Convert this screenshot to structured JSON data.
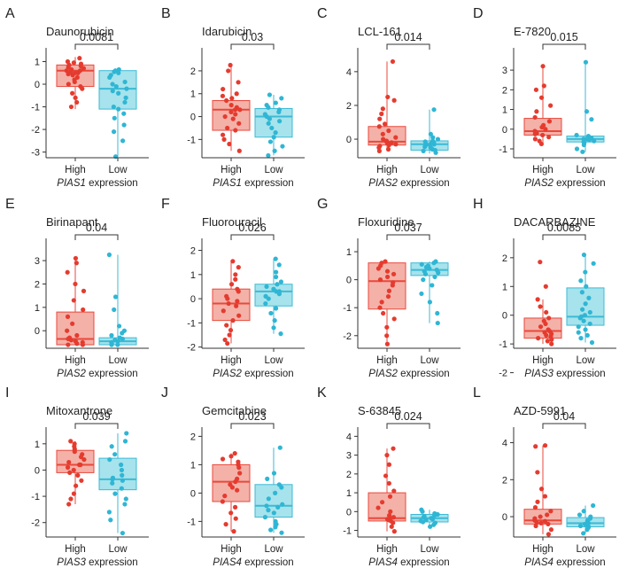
{
  "figure": {
    "colors": {
      "high_fill": "#F4B1A8",
      "high_line": "#E8493C",
      "high_point": "#E53B2F",
      "low_fill": "#A6E3EC",
      "low_line": "#3DBAD5",
      "low_point": "#2FB6D4",
      "axis": "#333333"
    }
  },
  "chart_data": [
    {
      "type": "box",
      "letter": "A",
      "title": "Daunorubicin",
      "p_value": "0.0081",
      "gene": "PIAS1",
      "xlabel_suffix": " expression",
      "categories": [
        "High",
        "Low"
      ],
      "yticks": [
        -3,
        -2,
        -1,
        0,
        1
      ],
      "ylim": [
        -3.25,
        1.45
      ],
      "boxes": [
        {
          "name": "High",
          "q1": -0.1,
          "median": 0.6,
          "q3": 0.85,
          "whisker_low": -1.1,
          "whisker_high": 1.2,
          "points": [
            1.15,
            1.0,
            0.95,
            0.9,
            0.85,
            0.8,
            0.75,
            0.7,
            0.65,
            0.6,
            0.6,
            0.55,
            0.5,
            0.5,
            0.45,
            0.4,
            0.3,
            0.2,
            0.1,
            0.0,
            -0.1,
            -0.2,
            -0.4,
            -0.6,
            -0.8,
            -1.0
          ]
        },
        {
          "name": "Low",
          "q1": -1.1,
          "median": -0.2,
          "q3": 0.6,
          "whisker_low": -3.2,
          "whisker_high": 0.65,
          "points": [
            0.65,
            0.6,
            0.55,
            0.5,
            0.4,
            0.3,
            0.1,
            0.0,
            -0.1,
            -0.2,
            -0.3,
            -0.4,
            -0.6,
            -0.8,
            -1.0,
            -1.1,
            -1.3,
            -1.5,
            -1.8,
            -2.1,
            -2.5,
            -3.2
          ]
        }
      ]
    },
    {
      "type": "box",
      "letter": "B",
      "title": "Idarubicin",
      "p_value": "0.03",
      "gene": "PIAS1",
      "xlabel_suffix": " expression",
      "categories": [
        "High",
        "Low"
      ],
      "yticks": [
        -1,
        0,
        1,
        2
      ],
      "ylim": [
        -1.8,
        2.85
      ],
      "boxes": [
        {
          "name": "High",
          "q1": -0.6,
          "median": 0.3,
          "q3": 0.7,
          "whisker_low": -1.5,
          "whisker_high": 2.25,
          "points": [
            2.25,
            2.0,
            1.5,
            1.2,
            1.0,
            0.9,
            0.8,
            0.7,
            0.5,
            0.4,
            0.3,
            0.3,
            0.2,
            0.1,
            0.0,
            -0.1,
            -0.3,
            -0.5,
            -0.6,
            -0.8,
            -1.0,
            -1.2,
            -1.5
          ]
        },
        {
          "name": "Low",
          "q1": -0.9,
          "median": 0.0,
          "q3": 0.35,
          "whisker_low": -1.7,
          "whisker_high": 0.95,
          "points": [
            0.95,
            0.8,
            0.6,
            0.5,
            0.4,
            0.3,
            0.2,
            0.1,
            0.0,
            -0.1,
            -0.2,
            -0.3,
            -0.5,
            -0.7,
            -0.9,
            -1.1,
            -1.3,
            -1.5,
            -1.7
          ]
        }
      ]
    },
    {
      "type": "box",
      "letter": "C",
      "title": "LCL-161",
      "p_value": "0.014",
      "gene": "PIAS2",
      "xlabel_suffix": " expression",
      "categories": [
        "High",
        "Low"
      ],
      "yticks": [
        0,
        2,
        4
      ],
      "ylim": [
        -1.1,
        5.2
      ],
      "boxes": [
        {
          "name": "High",
          "q1": -0.35,
          "median": -0.15,
          "q3": 0.75,
          "whisker_low": -0.7,
          "whisker_high": 4.6,
          "points": [
            4.6,
            2.5,
            2.3,
            1.8,
            1.5,
            1.2,
            0.9,
            0.75,
            0.5,
            0.3,
            0.1,
            0.0,
            -0.1,
            -0.15,
            -0.2,
            -0.25,
            -0.3,
            -0.35,
            -0.4,
            -0.5,
            -0.6,
            -0.7
          ]
        },
        {
          "name": "Low",
          "q1": -0.65,
          "median": -0.3,
          "q3": -0.1,
          "whisker_low": -0.85,
          "whisker_high": 1.75,
          "points": [
            1.75,
            0.3,
            0.1,
            0.0,
            -0.1,
            -0.15,
            -0.2,
            -0.25,
            -0.3,
            -0.3,
            -0.35,
            -0.4,
            -0.45,
            -0.5,
            -0.55,
            -0.6,
            -0.65,
            -0.7,
            -0.8
          ]
        }
      ]
    },
    {
      "type": "box",
      "letter": "D",
      "title": "E-7820",
      "p_value": "0.015",
      "gene": "PIAS2",
      "xlabel_suffix": " expression",
      "categories": [
        "High",
        "Low"
      ],
      "yticks": [
        -1,
        0,
        1,
        2,
        3
      ],
      "ylim": [
        -1.45,
        3.95
      ],
      "boxes": [
        {
          "name": "High",
          "q1": -0.3,
          "median": -0.1,
          "q3": 0.55,
          "whisker_low": -0.75,
          "whisker_high": 3.2,
          "points": [
            3.2,
            2.2,
            2.0,
            1.6,
            1.2,
            0.9,
            0.6,
            0.4,
            0.2,
            0.1,
            0.0,
            -0.1,
            -0.15,
            -0.2,
            -0.25,
            -0.3,
            -0.4,
            -0.5,
            -0.6,
            -0.75
          ]
        },
        {
          "name": "Low",
          "q1": -0.65,
          "median": -0.5,
          "q3": -0.35,
          "whisker_low": -1.15,
          "whisker_high": 3.4,
          "points": [
            3.4,
            0.9,
            0.5,
            -0.3,
            -0.35,
            -0.4,
            -0.45,
            -0.5,
            -0.5,
            -0.55,
            -0.6,
            -0.65,
            -0.7,
            -0.8,
            -1.0,
            -1.15
          ]
        }
      ]
    },
    {
      "type": "box",
      "letter": "E",
      "title": "Birinapant",
      "p_value": "0.04",
      "gene": "PIAS2",
      "xlabel_suffix": " expression",
      "categories": [
        "High",
        "Low"
      ],
      "yticks": [
        0,
        1,
        2,
        3
      ],
      "ylim": [
        -0.75,
        3.8
      ],
      "boxes": [
        {
          "name": "High",
          "q1": -0.6,
          "median": -0.35,
          "q3": 0.8,
          "whisker_low": -0.6,
          "whisker_high": 3.1,
          "points": [
            3.1,
            2.9,
            2.5,
            2.0,
            1.7,
            1.3,
            0.9,
            0.6,
            0.3,
            0.0,
            -0.2,
            -0.3,
            -0.35,
            -0.4,
            -0.45,
            -0.5,
            -0.55,
            -0.6,
            -0.6
          ]
        },
        {
          "name": "Low",
          "q1": -0.6,
          "median": -0.45,
          "q3": -0.3,
          "whisker_low": -0.6,
          "whisker_high": 3.25,
          "points": [
            3.25,
            1.45,
            0.9,
            0.2,
            0.0,
            -0.1,
            -0.2,
            -0.3,
            -0.35,
            -0.4,
            -0.45,
            -0.5,
            -0.55,
            -0.6,
            -0.6
          ]
        }
      ]
    },
    {
      "type": "box",
      "letter": "F",
      "title": "Fluorouracil",
      "p_value": "0.026",
      "gene": "PIAS2",
      "xlabel_suffix": " expression",
      "categories": [
        "High",
        "Low"
      ],
      "yticks": [
        -2,
        -1,
        0,
        1,
        2
      ],
      "ylim": [
        -2.05,
        2.35
      ],
      "boxes": [
        {
          "name": "High",
          "q1": -0.9,
          "median": -0.2,
          "q3": 0.4,
          "whisker_low": -1.85,
          "whisker_high": 1.55,
          "points": [
            1.55,
            1.3,
            1.0,
            0.8,
            0.6,
            0.4,
            0.3,
            0.1,
            0.0,
            -0.1,
            -0.2,
            -0.3,
            -0.5,
            -0.7,
            -0.9,
            -1.1,
            -1.3,
            -1.5,
            -1.7,
            -1.85
          ]
        },
        {
          "name": "Low",
          "q1": -0.3,
          "median": 0.3,
          "q3": 0.6,
          "whisker_low": -1.45,
          "whisker_high": 1.65,
          "points": [
            1.65,
            1.4,
            1.1,
            0.9,
            0.7,
            0.6,
            0.5,
            0.4,
            0.3,
            0.3,
            0.2,
            0.1,
            0.0,
            -0.2,
            -0.4,
            -0.6,
            -0.9,
            -1.2,
            -1.45
          ]
        }
      ]
    },
    {
      "type": "box",
      "letter": "G",
      "title": "Floxuridine",
      "p_value": "0.037",
      "gene": "PIAS2",
      "xlabel_suffix": " expression",
      "categories": [
        "High",
        "Low"
      ],
      "yticks": [
        -2,
        -1,
        0,
        1
      ],
      "ylim": [
        -2.45,
        1.35
      ],
      "boxes": [
        {
          "name": "High",
          "q1": -1.05,
          "median": -0.05,
          "q3": 0.6,
          "whisker_low": -2.3,
          "whisker_high": 0.65,
          "points": [
            0.65,
            0.6,
            0.5,
            0.4,
            0.3,
            0.2,
            0.1,
            0.0,
            -0.1,
            -0.2,
            -0.4,
            -0.6,
            -0.8,
            -1.0,
            -1.2,
            -1.4,
            -1.7,
            -2.0,
            -2.3
          ]
        },
        {
          "name": "Low",
          "q1": 0.15,
          "median": 0.35,
          "q3": 0.6,
          "whisker_low": -1.55,
          "whisker_high": 0.65,
          "points": [
            0.65,
            0.6,
            0.55,
            0.5,
            0.45,
            0.4,
            0.35,
            0.3,
            0.25,
            0.2,
            0.1,
            0.0,
            -0.2,
            -0.5,
            -0.8,
            -1.2,
            -1.55
          ]
        }
      ]
    },
    {
      "type": "box",
      "letter": "H",
      "title": "DACARBAZINE",
      "p_value": "0.0085",
      "gene": "PIAS3",
      "xlabel_suffix": " expression",
      "categories": [
        "High",
        "Low"
      ],
      "yticks": [
        -2,
        -1,
        0,
        1,
        2
      ],
      "ylim": [
        -1.15,
        2.55
      ],
      "boxes": [
        {
          "name": "High",
          "q1": -0.8,
          "median": -0.55,
          "q3": -0.1,
          "whisker_low": -1.0,
          "whisker_high": 0.55,
          "points": [
            1.85,
            1.0,
            0.55,
            0.3,
            0.1,
            -0.1,
            -0.2,
            -0.3,
            -0.4,
            -0.5,
            -0.55,
            -0.6,
            -0.65,
            -0.7,
            -0.75,
            -0.8,
            -0.85,
            -0.9,
            -1.0
          ]
        },
        {
          "name": "Low",
          "q1": -0.35,
          "median": -0.05,
          "q3": 0.95,
          "whisker_low": -0.95,
          "whisker_high": 2.1,
          "points": [
            2.1,
            1.8,
            1.5,
            1.2,
            1.0,
            0.8,
            0.6,
            0.4,
            0.2,
            0.1,
            0.0,
            -0.05,
            -0.1,
            -0.2,
            -0.3,
            -0.4,
            -0.5,
            -0.6,
            -0.7,
            -0.8,
            -0.95
          ]
        }
      ]
    },
    {
      "type": "box",
      "letter": "I",
      "title": "Mitoxantrone",
      "p_value": "0.039",
      "gene": "PIAS3",
      "xlabel_suffix": " expression",
      "categories": [
        "High",
        "Low"
      ],
      "yticks": [
        -2,
        -1,
        0,
        1
      ],
      "ylim": [
        -2.55,
        1.5
      ],
      "boxes": [
        {
          "name": "High",
          "q1": -0.1,
          "median": 0.2,
          "q3": 0.75,
          "whisker_low": -1.3,
          "whisker_high": 1.1,
          "points": [
            1.1,
            1.0,
            0.9,
            0.8,
            0.7,
            0.6,
            0.5,
            0.4,
            0.3,
            0.2,
            0.2,
            0.1,
            0.0,
            -0.1,
            -0.2,
            -0.4,
            -0.6,
            -0.9,
            -1.1,
            -1.3
          ]
        },
        {
          "name": "Low",
          "q1": -0.75,
          "median": -0.35,
          "q3": 0.45,
          "whisker_low": -2.4,
          "whisker_high": 1.4,
          "points": [
            1.4,
            1.1,
            0.9,
            0.6,
            0.4,
            0.2,
            0.0,
            -0.2,
            -0.3,
            -0.35,
            -0.4,
            -0.5,
            -0.7,
            -0.9,
            -1.1,
            -1.3,
            -1.6,
            -1.9,
            -2.4
          ]
        }
      ]
    },
    {
      "type": "box",
      "letter": "J",
      "title": "Gemcitabine",
      "p_value": "0.023",
      "gene": "PIAS4",
      "xlabel_suffix": " expression",
      "categories": [
        "High",
        "Low"
      ],
      "yticks": [
        -1,
        0,
        1,
        2
      ],
      "ylim": [
        -1.55,
        2.2
      ],
      "boxes": [
        {
          "name": "High",
          "q1": -0.3,
          "median": 0.4,
          "q3": 1.0,
          "whisker_low": -1.35,
          "whisker_high": 1.4,
          "points": [
            1.4,
            1.3,
            1.2,
            1.1,
            1.0,
            0.9,
            0.7,
            0.5,
            0.4,
            0.3,
            0.2,
            0.1,
            -0.1,
            -0.3,
            -0.5,
            -0.7,
            -0.9,
            -1.1,
            -1.35
          ]
        },
        {
          "name": "Low",
          "q1": -0.85,
          "median": -0.45,
          "q3": 0.3,
          "whisker_low": -1.4,
          "whisker_high": 1.6,
          "points": [
            1.6,
            0.7,
            0.5,
            0.3,
            0.2,
            0.0,
            -0.2,
            -0.4,
            -0.45,
            -0.5,
            -0.6,
            -0.7,
            -0.85,
            -1.0,
            -1.1,
            -1.2,
            -1.3,
            -1.4
          ]
        }
      ]
    },
    {
      "type": "box",
      "letter": "K",
      "title": "S-63845",
      "p_value": "0.024",
      "gene": "PIAS4",
      "xlabel_suffix": " expression",
      "categories": [
        "High",
        "Low"
      ],
      "yticks": [
        -1,
        0,
        1,
        2,
        3,
        4
      ],
      "ylim": [
        -1.35,
        4.3
      ],
      "boxes": [
        {
          "name": "High",
          "q1": -0.5,
          "median": -0.35,
          "q3": 1.0,
          "whisker_low": -1.05,
          "whisker_high": 3.35,
          "points": [
            3.35,
            3.0,
            2.5,
            1.9,
            1.5,
            1.1,
            0.8,
            0.5,
            0.2,
            0.0,
            -0.2,
            -0.3,
            -0.35,
            -0.4,
            -0.45,
            -0.5,
            -0.6,
            -0.8,
            -1.05
          ]
        },
        {
          "name": "Low",
          "q1": -0.55,
          "median": -0.35,
          "q3": -0.15,
          "whisker_low": -0.8,
          "whisker_high": 0.1,
          "points": [
            0.1,
            0.0,
            -0.1,
            -0.15,
            -0.2,
            -0.25,
            -0.3,
            -0.35,
            -0.4,
            -0.45,
            -0.5,
            -0.55,
            -0.6,
            -0.7,
            -0.8
          ]
        }
      ]
    },
    {
      "type": "box",
      "letter": "L",
      "title": "AZD-5991",
      "p_value": "0.04",
      "gene": "PIAS4",
      "xlabel_suffix": " expression",
      "categories": [
        "High",
        "Low"
      ],
      "yticks": [
        0,
        2,
        4
      ],
      "ylim": [
        -1.1,
        4.65
      ],
      "boxes": [
        {
          "name": "High",
          "q1": -0.4,
          "median": -0.2,
          "q3": 0.4,
          "whisker_low": -0.95,
          "whisker_high": 3.85,
          "points": [
            3.85,
            3.8,
            2.4,
            1.5,
            1.1,
            0.8,
            0.5,
            0.3,
            0.1,
            0.0,
            -0.1,
            -0.2,
            -0.25,
            -0.3,
            -0.35,
            -0.4,
            -0.5,
            -0.7,
            -0.95
          ]
        },
        {
          "name": "Low",
          "q1": -0.55,
          "median": -0.35,
          "q3": -0.05,
          "whisker_low": -0.9,
          "whisker_high": 0.6,
          "points": [
            0.6,
            0.3,
            0.1,
            0.0,
            -0.1,
            -0.2,
            -0.3,
            -0.35,
            -0.4,
            -0.45,
            -0.5,
            -0.55,
            -0.6,
            -0.7,
            -0.9
          ]
        }
      ]
    }
  ]
}
